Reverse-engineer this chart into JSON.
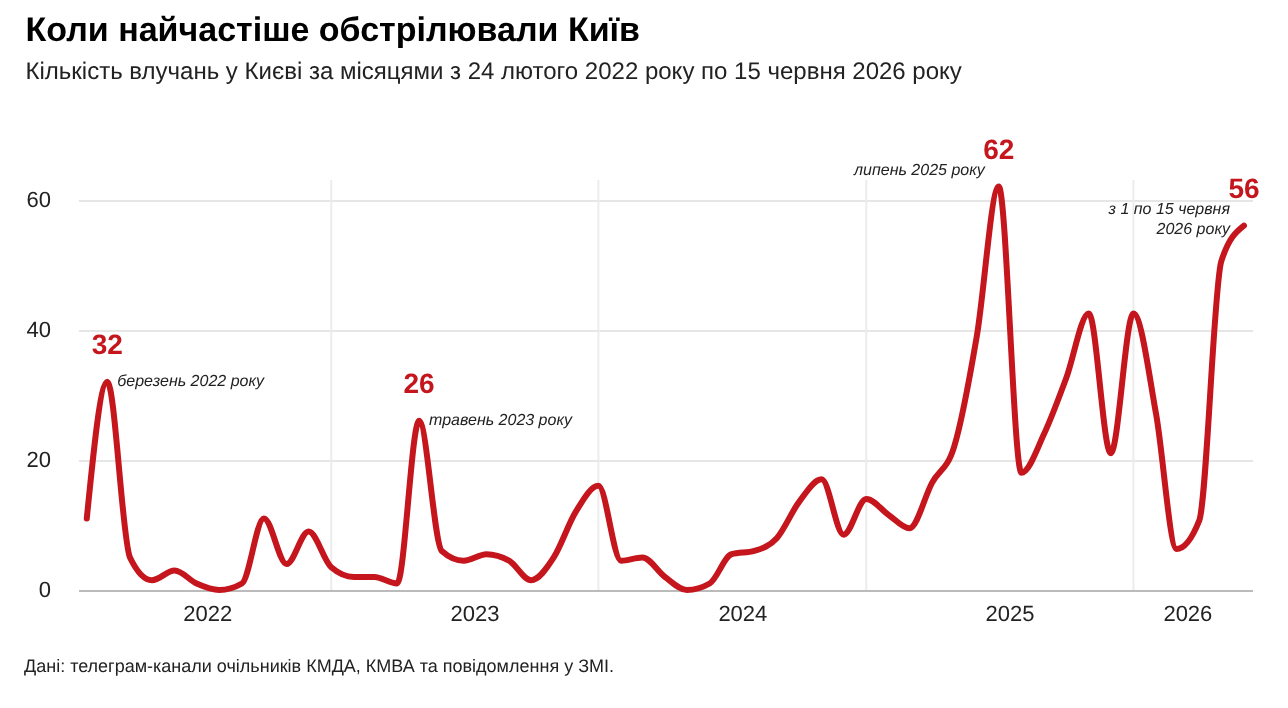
{
  "chart_data": {
    "type": "line",
    "title": "Коли найчастіше обстрілювали Київ",
    "subtitle": "Кількість влучань у Києві за місяцями з 24 лютого 2022 року по 15 червня 2026 року",
    "x": [
      "2022-02",
      "2022-03",
      "2022-04",
      "2022-05",
      "2022-06",
      "2022-07",
      "2022-08",
      "2022-09",
      "2022-10",
      "2022-11",
      "2022-12",
      "2023-01",
      "2023-02",
      "2023-03",
      "2023-04",
      "2023-05",
      "2023-06",
      "2023-07",
      "2023-08",
      "2023-09",
      "2023-10",
      "2023-11",
      "2023-12",
      "2024-01",
      "2024-02",
      "2024-03",
      "2024-04",
      "2024-05",
      "2024-06",
      "2024-07",
      "2024-08",
      "2024-09",
      "2024-10",
      "2024-11",
      "2024-12",
      "2025-01",
      "2025-02",
      "2025-03",
      "2025-04",
      "2025-05",
      "2025-06",
      "2025-07",
      "2025-08",
      "2025-09",
      "2025-10",
      "2025-11",
      "2025-12",
      "2026-01",
      "2026-02",
      "2026-03",
      "2026-04",
      "2026-05",
      "2026-06"
    ],
    "series": [
      {
        "color": "#c4161c",
        "values": [
          11,
          32,
          5,
          1.5,
          3,
          1,
          0,
          1,
          11,
          4,
          9,
          3.5,
          2,
          2,
          1,
          26,
          6,
          4.5,
          5.5,
          4.5,
          1.5,
          5,
          12,
          16,
          4.5,
          5,
          2,
          0,
          1,
          5.5,
          6,
          8,
          13.5,
          17,
          8.5,
          14,
          11.5,
          9.5,
          16.5,
          22,
          39,
          62,
          18,
          24,
          32.5,
          42.5,
          21,
          42.5,
          27,
          6.3,
          10.7,
          50.5,
          56
        ],
        "value_labels": [
          null,
          "32",
          null,
          null,
          null,
          null,
          null,
          null,
          null,
          null,
          null,
          null,
          null,
          null,
          null,
          "26",
          null,
          null,
          null,
          null,
          null,
          null,
          null,
          null,
          null,
          null,
          null,
          null,
          null,
          null,
          null,
          null,
          null,
          null,
          null,
          null,
          null,
          null,
          null,
          null,
          null,
          "62",
          null,
          null,
          null,
          null,
          null,
          null,
          null,
          null,
          null,
          null,
          "56"
        ]
      }
    ],
    "xlim": [
      "2022-01-20",
      "2026-06-12"
    ],
    "xticks": [
      {
        "value": "2022-07-15",
        "label": "2022"
      },
      {
        "value": "2023-07-15",
        "label": "2023"
      },
      {
        "value": "2024-07-15",
        "label": "2024"
      },
      {
        "value": "2025-07-15",
        "label": "2025"
      },
      {
        "value": "2026-03-15",
        "label": "2026"
      }
    ],
    "ylim": [
      0,
      63
    ],
    "yticks": [
      0,
      20,
      40,
      60
    ],
    "grid": "y",
    "marker": "none",
    "line_style": "solid",
    "ref_lines": [
      {
        "axis": "x",
        "value": "2023-01",
        "color": "#ececec"
      },
      {
        "axis": "x",
        "value": "2024-01",
        "color": "#ececec"
      },
      {
        "axis": "x",
        "value": "2025-01",
        "color": "#ececec"
      },
      {
        "axis": "x",
        "value": "2026-01",
        "color": "#ececec"
      }
    ],
    "annotations": [
      {
        "text": "березень 2022 року",
        "x": "2022-03",
        "y": 32
      },
      {
        "text": "травень 2023 року",
        "x": "2023-05",
        "y": 26
      },
      {
        "text": "липень 2025 року",
        "x": "2025-07",
        "y": 62
      },
      {
        "text": "з 1 по 15 червня\n2026 року",
        "x": "2026-06",
        "y": 56
      },
      "Дані: телеграм-канали очільників КМДА, КМВА та повідомлення у ЗМІ."
    ]
  }
}
